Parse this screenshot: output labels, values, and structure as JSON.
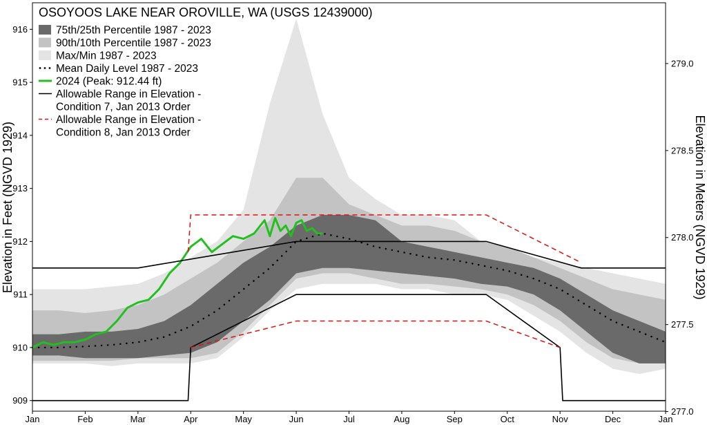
{
  "chart_data": {
    "type": "area",
    "title": "OSOYOOS LAKE NEAR OROVILLE, WA (USGS 12439000)",
    "ylabel": "Elevation in Feet (NGVD 1929)",
    "ylabel_right": "Elevation in Meters (NGVD 1929)",
    "xlabel": "",
    "x_domain": [
      "Jan",
      "Jan"
    ],
    "ylim": [
      908.8,
      916.5
    ],
    "ylim_right_m": [
      277.0,
      279.0
    ],
    "grid": false,
    "legend_position": "top-left",
    "x_ticks": [
      "Jan",
      "Feb",
      "Mar",
      "Apr",
      "May",
      "Jun",
      "Jul",
      "Aug",
      "Sep",
      "Oct",
      "Nov",
      "Dec",
      "Jan"
    ],
    "y_ticks": [
      "909",
      "910",
      "911",
      "912",
      "913",
      "914",
      "915",
      "916"
    ],
    "y_ticks_right": [
      "277.0",
      "277.5",
      "278.0",
      "278.5",
      "279.0"
    ],
    "x_months": [
      0,
      0.5,
      1,
      1.5,
      2,
      2.5,
      3,
      3.5,
      4,
      4.5,
      5,
      5.5,
      6,
      6.5,
      7,
      7.5,
      8,
      8.5,
      9,
      9.5,
      10,
      10.5,
      11,
      11.5,
      12
    ],
    "series": [
      {
        "name": "Max/Min 1987 - 2023",
        "kind": "band",
        "color": "#e4e4e4",
        "upper": [
          911.1,
          911.1,
          911.1,
          911.15,
          911.2,
          911.4,
          911.7,
          912.0,
          912.6,
          914.6,
          916.2,
          914.4,
          913.2,
          912.8,
          912.5,
          912.5,
          912.4,
          912.0,
          911.9,
          911.7,
          911.6,
          911.5,
          911.4,
          911.3,
          911.2
        ],
        "lower": [
          909.7,
          909.7,
          909.7,
          909.65,
          909.7,
          909.7,
          909.7,
          909.8,
          910.2,
          910.7,
          911.1,
          911.2,
          911.2,
          911.2,
          911.1,
          911.1,
          911.0,
          911.0,
          910.9,
          910.6,
          910.3,
          909.9,
          909.6,
          909.5,
          909.6
        ]
      },
      {
        "name": "90th/10th Percentile 1987 - 2023",
        "kind": "band",
        "color": "#c3c3c3",
        "upper": [
          910.7,
          910.7,
          910.65,
          910.7,
          910.8,
          911.0,
          911.3,
          911.6,
          912.0,
          912.4,
          913.2,
          913.2,
          912.7,
          912.5,
          912.3,
          912.3,
          912.2,
          912.0,
          911.9,
          911.7,
          911.5,
          911.3,
          911.1,
          911.0,
          910.9
        ],
        "lower": [
          909.75,
          909.75,
          909.75,
          909.75,
          909.8,
          909.8,
          909.8,
          909.9,
          910.3,
          910.8,
          911.3,
          911.4,
          911.4,
          911.3,
          911.2,
          911.2,
          911.15,
          911.1,
          911.0,
          910.8,
          910.5,
          910.1,
          909.8,
          909.7,
          909.7
        ]
      },
      {
        "name": "75th/25th Percentile 1987 - 2023",
        "kind": "band",
        "color": "#6a6a6a",
        "upper": [
          910.25,
          910.25,
          910.3,
          910.3,
          910.35,
          910.5,
          910.8,
          911.2,
          911.6,
          911.9,
          912.3,
          912.5,
          912.5,
          912.4,
          912.0,
          911.9,
          911.8,
          911.7,
          911.6,
          911.5,
          911.3,
          911.0,
          910.7,
          910.5,
          910.3
        ],
        "lower": [
          909.85,
          909.85,
          909.8,
          909.8,
          909.8,
          909.85,
          909.9,
          910.1,
          910.5,
          910.9,
          911.4,
          911.5,
          911.5,
          911.45,
          911.4,
          911.35,
          911.3,
          911.2,
          911.15,
          911.0,
          910.7,
          910.3,
          909.9,
          909.7,
          909.7
        ]
      },
      {
        "name": "Mean Daily Level 1987 - 2023",
        "kind": "dotted",
        "color": "#000000",
        "values": [
          910.0,
          910.0,
          910.02,
          910.05,
          910.1,
          910.2,
          910.4,
          910.7,
          911.1,
          911.5,
          912.0,
          912.15,
          912.05,
          911.9,
          911.8,
          911.7,
          911.65,
          911.55,
          911.45,
          911.3,
          911.1,
          910.8,
          910.5,
          910.3,
          910.1
        ]
      },
      {
        "name": "2024 (Peak: 912.44 ft)",
        "kind": "line",
        "color": "#22c01e",
        "x": [
          0,
          0.2,
          0.4,
          0.6,
          0.8,
          1.0,
          1.2,
          1.4,
          1.6,
          1.8,
          2.0,
          2.2,
          2.4,
          2.6,
          2.8,
          3.0,
          3.2,
          3.4,
          3.6,
          3.8,
          4.0,
          4.2,
          4.4,
          4.5,
          4.6,
          4.7,
          4.8,
          4.9,
          5.0,
          5.1,
          5.2,
          5.3,
          5.4,
          5.5
        ],
        "values": [
          910.0,
          910.1,
          910.05,
          910.1,
          910.1,
          910.15,
          910.25,
          910.3,
          910.5,
          910.75,
          910.85,
          910.9,
          911.1,
          911.4,
          911.6,
          911.9,
          912.05,
          911.8,
          911.95,
          912.1,
          912.05,
          912.15,
          912.4,
          912.1,
          912.44,
          912.2,
          912.3,
          912.1,
          912.35,
          912.4,
          912.2,
          912.25,
          912.15,
          912.15
        ]
      },
      {
        "name": "Allowable Range in Elevation - Condition 7, Jan 2013 Order",
        "kind": "range",
        "color": "#000000",
        "dash": false,
        "upper_x": [
          0,
          2,
          5,
          8.6,
          10.4,
          12
        ],
        "upper": [
          911.5,
          911.5,
          912.0,
          912.0,
          911.5,
          911.5
        ],
        "lower_x": [
          0,
          2.95,
          3.0,
          5.0,
          8.6,
          10.0,
          10.05,
          12
        ],
        "lower": [
          909.0,
          909.0,
          910.0,
          911.0,
          911.0,
          910.0,
          909.0,
          909.0
        ]
      },
      {
        "name": "Allowable Range in Elevation - Condition 8, Jan 2013 Order",
        "kind": "range",
        "color": "#e01010",
        "dash": true,
        "upper_x": [
          2.95,
          3.0,
          8.6,
          10.4
        ],
        "upper": [
          911.8,
          912.5,
          912.5,
          911.6
        ],
        "lower_x": [
          3.0,
          5.0,
          8.6,
          10.0
        ],
        "lower": [
          910.0,
          910.5,
          910.5,
          910.0
        ]
      }
    ],
    "legend": [
      {
        "label": "75th/25th Percentile 1987 - 2023",
        "swatch": "box",
        "color": "#6a6a6a"
      },
      {
        "label": "90th/10th Percentile 1987 - 2023",
        "swatch": "box",
        "color": "#c3c3c3"
      },
      {
        "label": "Max/Min 1987 - 2023",
        "swatch": "box",
        "color": "#e4e4e4"
      },
      {
        "label": "Mean Daily Level 1987 - 2023",
        "swatch": "dots",
        "color": "#000000"
      },
      {
        "label": "2024 (Peak: 912.44 ft)",
        "swatch": "line",
        "color": "#22c01e"
      },
      {
        "label": "Allowable Range in Elevation -",
        "label2": "Condition 7, Jan 2013 Order",
        "swatch": "line",
        "color": "#000000"
      },
      {
        "label": "Allowable Range in Elevation -",
        "label2": "Condition 8, Jan 2013 Order",
        "swatch": "dash",
        "color": "#e01010"
      }
    ]
  }
}
